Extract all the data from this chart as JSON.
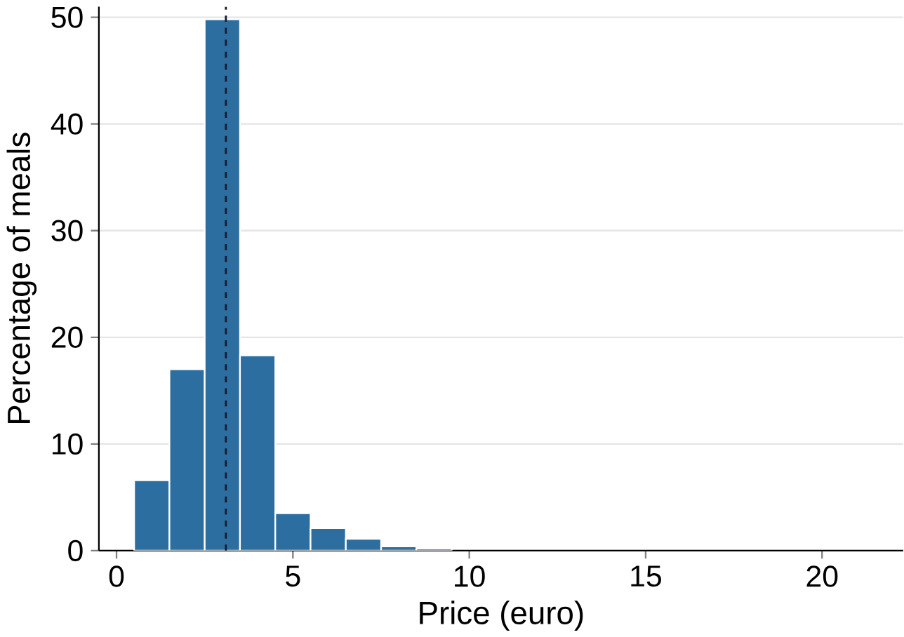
{
  "chart_data": {
    "type": "histogram",
    "xlabel": "Price (euro)",
    "ylabel": "Percentage of meals",
    "bins": [
      0.5,
      1.5,
      2.5,
      3.5,
      4.5,
      5.5,
      6.5,
      7.5,
      8.5,
      9.5
    ],
    "values": [
      6.6,
      17,
      49.8,
      18.3,
      3.5,
      2.1,
      1.1,
      0.4,
      0.2
    ],
    "color": "#2c6e9f",
    "xlim": [
      -0.5,
      22.3
    ],
    "ylim": [
      0,
      51
    ],
    "xticks": [
      0,
      5,
      10,
      15,
      20
    ],
    "yticks": [
      0,
      10,
      20,
      30,
      40,
      50
    ],
    "grid": "y",
    "ref_lines": [
      {
        "axis": "x",
        "value": 3.1,
        "color": "#1a1a2e",
        "line_style": "dashed"
      }
    ]
  }
}
